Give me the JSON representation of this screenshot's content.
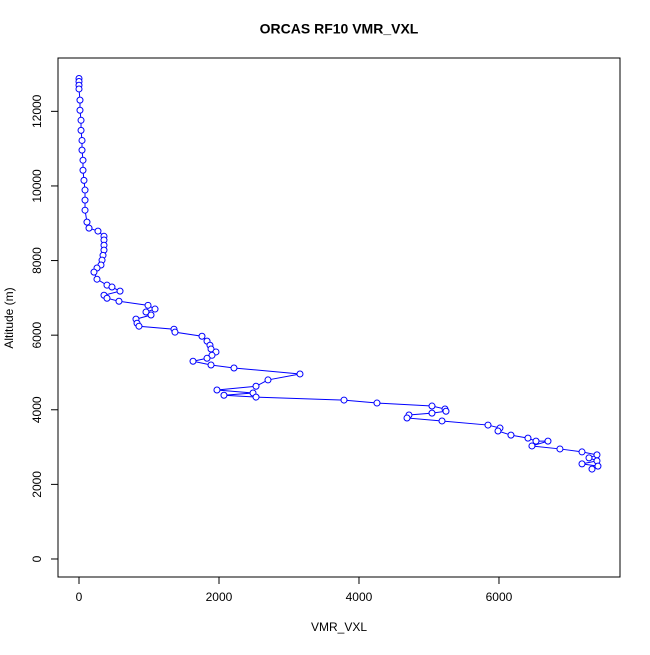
{
  "chart_data": {
    "type": "line",
    "title": "ORCAS RF10 VMR_VXL",
    "x_label": "VMR_VXL",
    "y_label": "Altitude (m)",
    "xlim": [
      -300,
      7729
    ],
    "ylim": [
      -483,
      13430
    ],
    "xticks": [
      0,
      2000,
      4000,
      6000
    ],
    "yticks": [
      0,
      2000,
      4000,
      6000,
      8000,
      10000,
      12000
    ],
    "series": [
      {
        "color": "#0000ff",
        "x": [
          0,
          0,
          0,
          0,
          14,
          14,
          29,
          29,
          43,
          43,
          57,
          57,
          71,
          86,
          86,
          86,
          114,
          143,
          271,
          357,
          357,
          357,
          357,
          343,
          329,
          314,
          257,
          214,
          257,
          400,
          471,
          586,
          357,
          400,
          571,
          986,
          1086,
          957,
          1029,
          814,
          829,
          857,
          1357,
          1371,
          1757,
          1829,
          1871,
          1886,
          1957,
          1900,
          1829,
          1629,
          1886,
          2214,
          3157,
          2700,
          2529,
          1971,
          2486,
          2071,
          2529,
          3786,
          4257,
          5043,
          5229,
          5243,
          5043,
          4714,
          4686,
          5186,
          5843,
          6014,
          5986,
          6171,
          6414,
          6529,
          6700,
          6471,
          6871,
          7186,
          7400,
          7286,
          7400,
          7186,
          7414,
          7329
        ],
        "y": [
          12880,
          12800,
          12700,
          12600,
          12300,
          12030,
          11760,
          11490,
          11220,
          10960,
          10690,
          10420,
          10150,
          9890,
          9620,
          9350,
          9030,
          8870,
          8790,
          8650,
          8550,
          8410,
          8280,
          8140,
          8010,
          7880,
          7800,
          7690,
          7500,
          7340,
          7290,
          7180,
          7070,
          6990,
          6910,
          6800,
          6700,
          6620,
          6540,
          6430,
          6320,
          6240,
          6160,
          6080,
          5970,
          5840,
          5730,
          5630,
          5550,
          5460,
          5380,
          5300,
          5200,
          5120,
          4960,
          4800,
          4630,
          4530,
          4450,
          4390,
          4340,
          4260,
          4180,
          4100,
          4020,
          3960,
          3910,
          3860,
          3780,
          3700,
          3590,
          3510,
          3430,
          3320,
          3240,
          3160,
          3160,
          3030,
          2950,
          2870,
          2790,
          2710,
          2630,
          2550,
          2490,
          2410
        ]
      }
    ]
  }
}
